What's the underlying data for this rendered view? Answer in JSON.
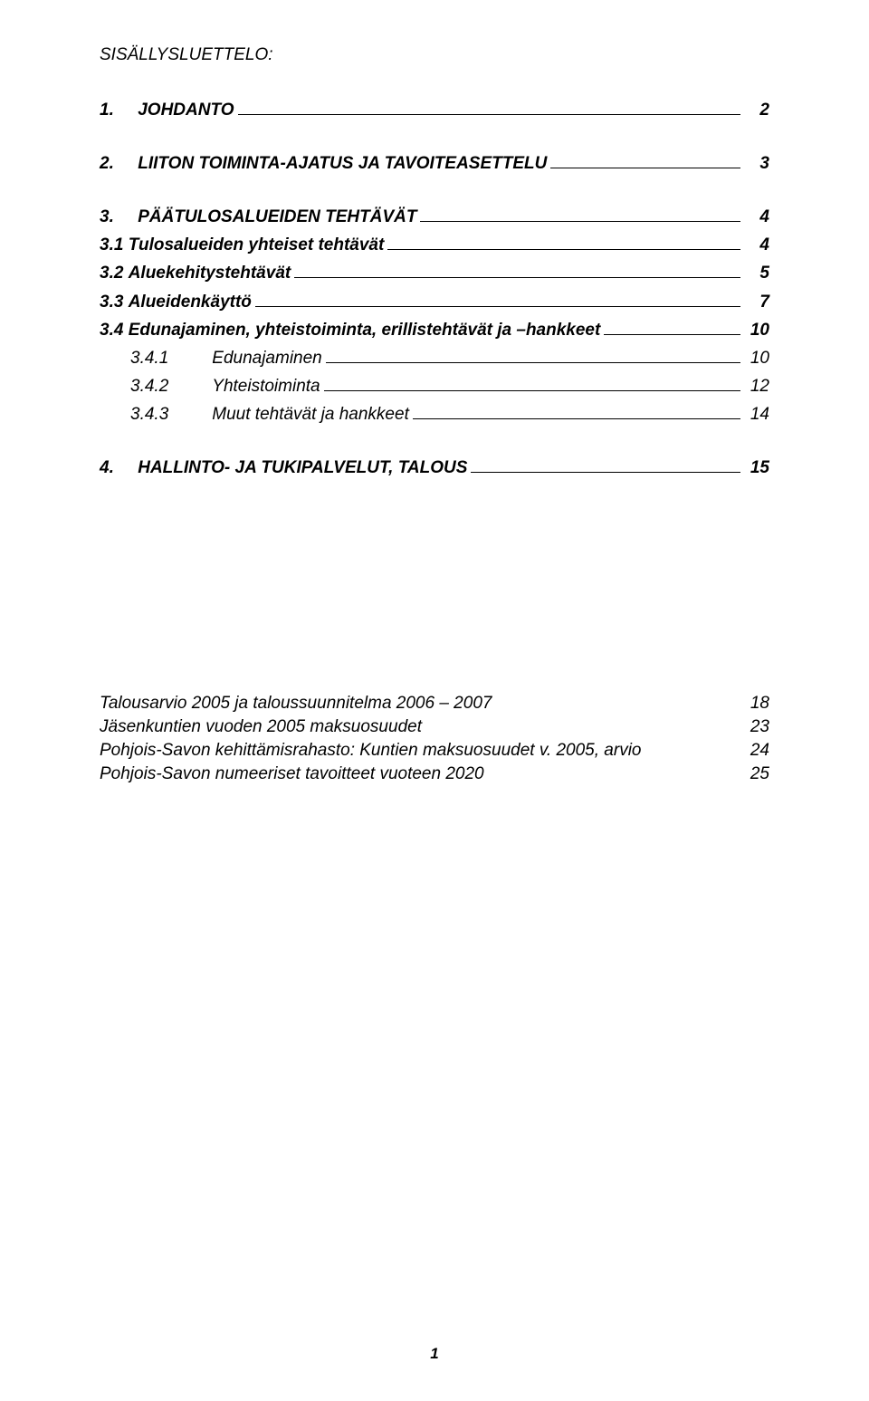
{
  "title": "SISÄLLYSLUETTELO:",
  "toc": [
    {
      "level": "h1",
      "num": "1.",
      "label": "JOHDANTO",
      "page": "2"
    },
    {
      "level": "h1",
      "num": "2.",
      "label": "LIITON TOIMINTA-AJATUS JA TAVOITEASETTELU",
      "page": "3"
    },
    {
      "level": "h1",
      "num": "3.",
      "label": "PÄÄTULOSALUEIDEN TEHTÄVÄT",
      "page": "4"
    },
    {
      "level": "h2",
      "num": "3.1",
      "label": "Tulosalueiden yhteiset tehtävät",
      "page": "4"
    },
    {
      "level": "h2",
      "num": "3.2",
      "label": "Aluekehitystehtävät",
      "page": "5"
    },
    {
      "level": "h2",
      "num": "3.3",
      "label": "Alueidenkäyttö",
      "page": "7"
    },
    {
      "level": "h2",
      "num": "3.4",
      "label": "Edunajaminen, yhteistoiminta, erillistehtävät ja –hankkeet",
      "page": "10"
    },
    {
      "level": "h3",
      "num": "3.4.1",
      "label": "Edunajaminen",
      "page": "10"
    },
    {
      "level": "h3",
      "num": "3.4.2",
      "label": "Yhteistoiminta",
      "page": "12"
    },
    {
      "level": "h3",
      "num": "3.4.3",
      "label": "Muut tehtävät ja hankkeet",
      "page": "14"
    },
    {
      "level": "h1",
      "num": "4.",
      "label": "HALLINTO- JA TUKIPALVELUT, TALOUS",
      "page": "15"
    }
  ],
  "appendix": [
    {
      "label": "Talousarvio 2005 ja taloussuunnitelma 2006 – 2007",
      "page": "18"
    },
    {
      "label": "Jäsenkuntien vuoden 2005 maksuosuudet",
      "page": "23"
    },
    {
      "label": "Pohjois-Savon kehittämisrahasto: Kuntien maksuosuudet v. 2005, arvio",
      "page": "24"
    },
    {
      "label": "Pohjois-Savon numeeriset tavoitteet vuoteen 2020",
      "page": "25"
    }
  ],
  "pageNumber": "1"
}
